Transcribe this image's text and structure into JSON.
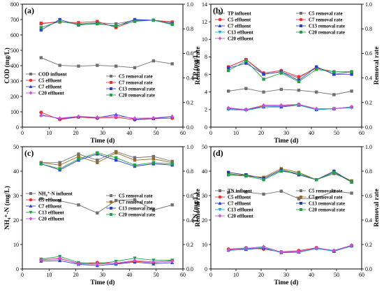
{
  "colors": {
    "gray": "#707070",
    "red": "#ee3030",
    "blue": "#2a3ed6",
    "green": "#1fa04a",
    "cyan": "#17aec8",
    "purple": "#cc4fd9",
    "navy": "#243a9a",
    "brown": "#9a6a2a"
  },
  "chart_data": [
    {
      "type": "line",
      "panel": "(a)",
      "xlabel": "Time (d)",
      "ylabel": "COD (mg/L)",
      "y2label": "Removal rate",
      "xlim": [
        0,
        60
      ],
      "xticks": [
        "0",
        "10",
        "20",
        "30",
        "40",
        "50",
        "60"
      ],
      "ylim": [
        0,
        800
      ],
      "yticks": [
        "0",
        "100",
        "200",
        "300",
        "400",
        "500",
        "600",
        "700",
        "800"
      ],
      "y2lim": [
        0.0,
        1.0
      ],
      "y2ticks": [
        "0.0",
        "0.2",
        "0.4",
        "0.6",
        "0.8",
        "1.0"
      ],
      "x": [
        7,
        14,
        21,
        28,
        35,
        42,
        49,
        56
      ],
      "series": [
        {
          "name": "COD influent",
          "axis": "left",
          "marker": "square",
          "color": "gray",
          "values": [
            452,
            402,
            397,
            402,
            397,
            387,
            431,
            412
          ]
        },
        {
          "name": "C5 effluent",
          "axis": "left",
          "marker": "circle",
          "color": "red",
          "values": [
            96,
            50,
            65,
            58,
            64,
            48,
            55,
            58
          ]
        },
        {
          "name": "C7 effluent",
          "axis": "left",
          "marker": "triangle",
          "color": "blue",
          "values": [
            80,
            55,
            68,
            62,
            82,
            52,
            56,
            68
          ]
        },
        {
          "name": "C20 effluent",
          "axis": "left",
          "marker": "diamond",
          "color": "purple",
          "values": [
            76,
            58,
            70,
            64,
            70,
            58,
            60,
            70
          ]
        },
        {
          "name": "C5 removal rate",
          "axis": "right",
          "marker": "square",
          "color": "gray",
          "values": [
            0.84,
            0.86,
            0.84,
            0.85,
            0.84,
            0.87,
            0.87,
            0.85
          ]
        },
        {
          "name": "C7 removal rate",
          "axis": "right",
          "marker": "square",
          "color": "red",
          "values": [
            0.845,
            0.855,
            0.85,
            0.86,
            0.81,
            0.865,
            0.87,
            0.855
          ]
        },
        {
          "name": "C13 removal rate",
          "axis": "right",
          "marker": "square",
          "color": "blue",
          "values": [
            0.79,
            0.875,
            0.83,
            0.845,
            0.82,
            0.875,
            0.87,
            0.84
          ]
        },
        {
          "name": "C20 removal rate",
          "axis": "right",
          "marker": "square",
          "color": "green",
          "values": [
            0.81,
            0.86,
            0.835,
            0.84,
            0.825,
            0.86,
            0.87,
            0.835
          ]
        }
      ],
      "legend_left_position": "lower-left",
      "legend_right_position": "center-right"
    },
    {
      "type": "line",
      "panel": "(b)",
      "xlabel": "Time (d)",
      "ylabel": "TP (mg/L)",
      "y2label": "Removal rate",
      "xlim": [
        0,
        60
      ],
      "xticks": [
        "0",
        "10",
        "20",
        "30",
        "40",
        "50",
        "60"
      ],
      "ylim": [
        0,
        14
      ],
      "yticks": [
        "0",
        "2",
        "4",
        "6",
        "8",
        "10",
        "12",
        "14"
      ],
      "y2lim": [
        0.0,
        1.0
      ],
      "y2ticks": [
        "0.0",
        "0.2",
        "0.4",
        "0.6",
        "0.8",
        "1.0"
      ],
      "x": [
        7,
        14,
        21,
        28,
        35,
        42,
        49,
        56
      ],
      "series": [
        {
          "name": "TP influent",
          "axis": "left",
          "marker": "square",
          "color": "gray",
          "values": [
            4.1,
            4.4,
            4.0,
            4.3,
            4.2,
            4.0,
            3.7,
            4.1
          ]
        },
        {
          "name": "C5 effluent",
          "axis": "left",
          "marker": "circle",
          "color": "red",
          "values": [
            2.1,
            2.0,
            2.4,
            2.4,
            2.6,
            2.0,
            2.1,
            2.3
          ]
        },
        {
          "name": "C7 effluent",
          "axis": "left",
          "marker": "triangle",
          "color": "blue",
          "values": [
            2.1,
            2.0,
            2.3,
            2.3,
            2.5,
            2.0,
            2.1,
            2.3
          ]
        },
        {
          "name": "C13 effluent",
          "axis": "left",
          "marker": "triangle-down",
          "color": "cyan",
          "values": [
            2.0,
            1.9,
            2.3,
            2.4,
            2.5,
            2.0,
            2.1,
            2.2
          ]
        },
        {
          "name": "C20 effluent",
          "axis": "left",
          "marker": "diamond",
          "color": "purple",
          "values": [
            2.2,
            2.0,
            2.5,
            2.5,
            2.6,
            2.1,
            2.1,
            2.3
          ]
        },
        {
          "name": "C5 removal rate",
          "axis": "right",
          "marker": "square",
          "color": "gray",
          "values": [
            0.49,
            0.55,
            0.43,
            0.45,
            0.4,
            0.49,
            0.43,
            0.45
          ]
        },
        {
          "name": "C7 removal rate",
          "axis": "right",
          "marker": "circle",
          "color": "red",
          "values": [
            0.49,
            0.55,
            0.44,
            0.46,
            0.41,
            0.48,
            0.45,
            0.45
          ]
        },
        {
          "name": "C13 removal rate",
          "axis": "right",
          "marker": "square",
          "color": "blue",
          "values": [
            0.48,
            0.52,
            0.43,
            0.45,
            0.38,
            0.49,
            0.43,
            0.43
          ]
        },
        {
          "name": "C20 removal rate",
          "axis": "right",
          "marker": "square",
          "color": "green",
          "values": [
            0.46,
            0.54,
            0.39,
            0.44,
            0.37,
            0.47,
            0.45,
            0.45
          ]
        }
      ],
      "legend_left_position": "top-left",
      "legend_right_position": "top-right"
    },
    {
      "type": "line",
      "panel": "(c)",
      "xlabel": "Time (d)",
      "ylabel": "NH₄⁺-N (mg/L)",
      "y2label": "Removal rate",
      "xlim": [
        0,
        60
      ],
      "xticks": [
        "0",
        "10",
        "20",
        "30",
        "40",
        "50",
        "60"
      ],
      "ylim": [
        0,
        50
      ],
      "yticks": [
        "0",
        "10",
        "20",
        "30",
        "40",
        "50"
      ],
      "y2lim": [
        0.0,
        1.0
      ],
      "y2ticks": [
        "0.0",
        "0.2",
        "0.4",
        "0.6",
        "0.8",
        "1.0"
      ],
      "x": [
        7,
        14,
        21,
        28,
        35,
        42,
        49,
        56
      ],
      "series": [
        {
          "name": "NH₄⁺-N influent",
          "axis": "left",
          "marker": "square",
          "color": "gray",
          "values": [
            28.7,
            27.9,
            26.2,
            22.9,
            28.0,
            28.3,
            24.1,
            26.2
          ]
        },
        {
          "name": "C5 effluent",
          "axis": "left",
          "marker": "circle",
          "color": "red",
          "values": [
            3.7,
            4.2,
            2.3,
            2.6,
            2.3,
            3.1,
            2.6,
            3.4
          ]
        },
        {
          "name": "C7 effluent",
          "axis": "left",
          "marker": "triangle",
          "color": "blue",
          "values": [
            3.2,
            3.4,
            1.9,
            1.4,
            2.0,
            2.8,
            2.1,
            2.6
          ]
        },
        {
          "name": "C13 effluent",
          "axis": "left",
          "marker": "triangle-down",
          "color": "green",
          "values": [
            4.0,
            5.1,
            2.6,
            2.1,
            3.1,
            4.4,
            3.6,
            3.6
          ]
        },
        {
          "name": "C20 effluent",
          "axis": "left",
          "marker": "diamond",
          "color": "purple",
          "values": [
            3.6,
            4.4,
            2.1,
            2.0,
            2.4,
            3.5,
            2.9,
            3.1
          ]
        },
        {
          "name": "C5 removal rate",
          "axis": "right",
          "marker": "square",
          "color": "gray",
          "values": [
            0.87,
            0.87,
            0.94,
            0.89,
            0.96,
            0.91,
            0.92,
            0.88
          ]
        },
        {
          "name": "C7 removal rate",
          "axis": "right",
          "marker": "square",
          "color": "brown",
          "values": [
            0.87,
            0.85,
            0.92,
            0.87,
            0.95,
            0.89,
            0.9,
            0.87
          ]
        },
        {
          "name": "C13 removal rate",
          "axis": "right",
          "marker": "square",
          "color": "blue",
          "values": [
            0.86,
            0.81,
            0.89,
            0.94,
            0.89,
            0.84,
            0.86,
            0.85
          ]
        },
        {
          "name": "C20 removal rate",
          "axis": "right",
          "marker": "square",
          "color": "green",
          "values": [
            0.86,
            0.82,
            0.9,
            0.95,
            0.91,
            0.85,
            0.87,
            0.86
          ]
        }
      ],
      "legend_left_position": "center-left",
      "legend_right_position": "center-right"
    },
    {
      "type": "line",
      "panel": "(d)",
      "xlabel": "Time (d)",
      "ylabel": "TN (mg/L)",
      "y2label": "Removal rate",
      "xlim": [
        0,
        60
      ],
      "xticks": [
        "0",
        "10",
        "20",
        "30",
        "40",
        "50",
        "60"
      ],
      "ylim": [
        0,
        50
      ],
      "yticks": [
        "0",
        "10",
        "20",
        "30",
        "40",
        "50"
      ],
      "y2lim": [
        0.0,
        1.0
      ],
      "y2ticks": [
        "0.0",
        "0.2",
        "0.4",
        "0.6",
        "0.8",
        "1.0"
      ],
      "x": [
        7,
        14,
        21,
        28,
        35,
        42,
        49,
        56
      ],
      "series": [
        {
          "name": "TN influent",
          "axis": "left",
          "marker": "square",
          "color": "gray",
          "values": [
            31.3,
            31.5,
            30.6,
            31.8,
            28.7,
            29.0,
            31.8,
            31.0
          ]
        },
        {
          "name": "C5 effluent",
          "axis": "left",
          "marker": "circle",
          "color": "red",
          "values": [
            8.1,
            8.6,
            8.1,
            7.0,
            7.5,
            8.7,
            7.4,
            9.6
          ]
        },
        {
          "name": "C7 effluent",
          "axis": "left",
          "marker": "triangle",
          "color": "blue",
          "values": [
            7.7,
            8.0,
            8.6,
            6.7,
            6.9,
            8.5,
            7.2,
            9.4
          ]
        },
        {
          "name": "C13 effluent",
          "axis": "left",
          "marker": "triangle-down",
          "color": "cyan",
          "values": [
            7.5,
            8.2,
            8.8,
            6.6,
            6.8,
            8.3,
            7.3,
            9.3
          ]
        },
        {
          "name": "C20 effluent",
          "axis": "left",
          "marker": "diamond",
          "color": "purple",
          "values": [
            7.9,
            8.4,
            9.1,
            6.9,
            7.1,
            8.6,
            7.6,
            9.7
          ]
        },
        {
          "name": "C5 removal rate",
          "axis": "right",
          "marker": "square",
          "color": "gray",
          "values": [
            0.77,
            0.77,
            0.74,
            0.81,
            0.78,
            0.73,
            0.78,
            0.72
          ]
        },
        {
          "name": "C7 removal rate",
          "axis": "right",
          "marker": "square",
          "color": "brown",
          "values": [
            0.78,
            0.76,
            0.75,
            0.82,
            0.79,
            0.73,
            0.79,
            0.72
          ]
        },
        {
          "name": "C13 removal rate",
          "axis": "right",
          "marker": "square",
          "color": "navy",
          "values": [
            0.79,
            0.77,
            0.74,
            0.81,
            0.77,
            0.73,
            0.8,
            0.71
          ]
        },
        {
          "name": "C20 removal rate",
          "axis": "right",
          "marker": "square",
          "color": "green",
          "values": [
            0.77,
            0.76,
            0.73,
            0.8,
            0.78,
            0.73,
            0.79,
            0.71
          ]
        }
      ],
      "legend_left_position": "center-left",
      "legend_right_position": "center-right"
    }
  ]
}
